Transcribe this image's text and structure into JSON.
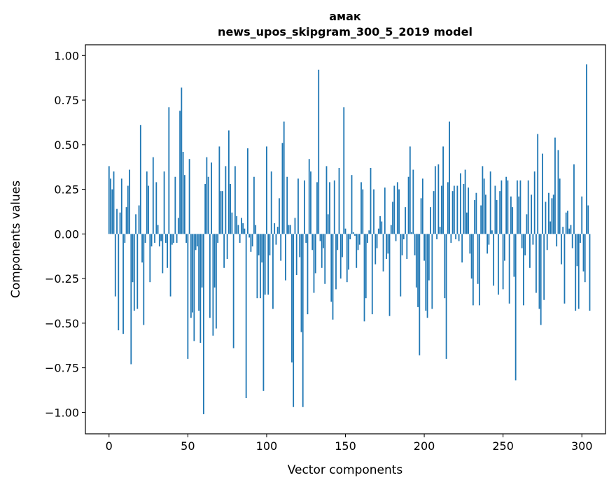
{
  "chart_data": {
    "type": "bar",
    "title_line1": "амак",
    "title_line2": "news_upos_skipgram_300_5_2019 model",
    "xlabel": "Vector components",
    "ylabel": "Components values",
    "xlim": [
      -15,
      315
    ],
    "ylim": [
      -1.12,
      1.06
    ],
    "xticks": [
      0,
      50,
      100,
      150,
      200,
      250,
      300
    ],
    "yticks": [
      -1.0,
      -0.75,
      -0.5,
      -0.25,
      0.0,
      0.25,
      0.5,
      0.75,
      1.0
    ],
    "ytick_labels": [
      "−1.00",
      "−0.75",
      "−0.50",
      "−0.25",
      "0.00",
      "0.25",
      "0.50",
      "0.75",
      "1.00"
    ],
    "bar_color": "#1f77b4",
    "grid": false,
    "values": [
      0.38,
      0.31,
      0.25,
      0.35,
      -0.35,
      0.14,
      -0.54,
      0.12,
      0.31,
      -0.56,
      -0.05,
      0.15,
      0.27,
      0.36,
      -0.73,
      -0.27,
      -0.43,
      0.11,
      -0.42,
      0.16,
      0.61,
      -0.16,
      -0.51,
      -0.05,
      0.35,
      0.27,
      -0.27,
      -0.07,
      0.43,
      -0.05,
      0.29,
      0.05,
      -0.07,
      -0.04,
      -0.22,
      0.35,
      -0.05,
      -0.19,
      0.71,
      -0.35,
      -0.06,
      -0.05,
      0.32,
      -0.05,
      0.09,
      0.69,
      0.82,
      0.46,
      0.33,
      -0.05,
      -0.7,
      0.42,
      -0.47,
      -0.44,
      -0.6,
      -0.09,
      -0.07,
      -0.43,
      -0.61,
      -0.3,
      -1.01,
      0.28,
      0.43,
      0.32,
      -0.47,
      0.4,
      -0.57,
      -0.3,
      -0.53,
      -0.05,
      0.49,
      0.24,
      0.24,
      -0.19,
      0.38,
      -0.14,
      0.58,
      0.28,
      0.12,
      -0.64,
      0.38,
      0.1,
      0.05,
      -0.05,
      0.09,
      0.06,
      0.03,
      -0.92,
      0.48,
      -0.02,
      -0.1,
      -0.07,
      0.32,
      0.05,
      -0.36,
      -0.12,
      -0.36,
      -0.16,
      -0.88,
      -0.34,
      0.49,
      -0.34,
      -0.12,
      0.35,
      -0.42,
      0.06,
      -0.06,
      0.04,
      0.2,
      -0.15,
      0.51,
      0.63,
      -0.26,
      0.32,
      0.05,
      0.05,
      -0.72,
      -0.97,
      0.09,
      -0.23,
      0.31,
      -0.13,
      -0.55,
      -0.97,
      0.3,
      -0.05,
      -0.45,
      0.42,
      0.35,
      -0.09,
      -0.33,
      -0.22,
      0.29,
      0.92,
      -0.04,
      -0.19,
      -0.08,
      -0.28,
      0.38,
      0.11,
      0.29,
      -0.38,
      -0.48,
      0.3,
      -0.31,
      -0.09,
      0.37,
      -0.25,
      -0.13,
      0.71,
      0.03,
      -0.27,
      -0.2,
      -0.03,
      0.33,
      0.01,
      -0.01,
      -0.19,
      -0.09,
      -0.06,
      0.29,
      0.25,
      -0.49,
      -0.36,
      -0.05,
      0.02,
      0.37,
      -0.45,
      0.25,
      -0.17,
      -0.08,
      0.03,
      0.1,
      0.07,
      -0.21,
      0.26,
      -0.14,
      -0.11,
      -0.46,
      0.05,
      0.18,
      0.27,
      -0.04,
      0.29,
      0.25,
      -0.35,
      -0.12,
      -0.03,
      0.15,
      -0.14,
      0.32,
      0.49,
      0.01,
      0.36,
      -0.12,
      -0.3,
      -0.41,
      -0.68,
      0.2,
      0.31,
      -0.15,
      -0.43,
      -0.47,
      -0.26,
      0.15,
      -0.42,
      0.24,
      0.38,
      -0.03,
      0.39,
      0.04,
      0.27,
      0.49,
      -0.36,
      -0.7,
      0.29,
      0.63,
      -0.05,
      0.24,
      0.27,
      -0.03,
      0.27,
      -0.04,
      0.34,
      -0.16,
      0.28,
      0.36,
      0.12,
      0.26,
      -0.11,
      -0.25,
      -0.4,
      0.19,
      0.23,
      -0.28,
      -0.4,
      0.16,
      0.38,
      0.31,
      0.22,
      -0.11,
      -0.06,
      0.35,
      0.02,
      -0.29,
      0.27,
      0.19,
      -0.34,
      0.24,
      0.3,
      -0.31,
      -0.15,
      0.32,
      0.3,
      -0.39,
      0.21,
      0.15,
      -0.24,
      -0.82,
      0.3,
      0.21,
      0.3,
      -0.08,
      -0.4,
      -0.12,
      0.11,
      0.3,
      -0.19,
      0.22,
      -0.06,
      0.35,
      -0.33,
      0.56,
      -0.42,
      -0.51,
      0.45,
      -0.37,
      0.18,
      -0.09,
      0.23,
      0.07,
      0.2,
      0.22,
      0.54,
      -0.07,
      0.47,
      0.31,
      -0.17,
      0.04,
      -0.39,
      0.12,
      0.13,
      0.03,
      0.05,
      -0.08,
      0.39,
      -0.43,
      -0.18,
      -0.42,
      -0.05,
      0.21,
      -0.21,
      -0.27,
      0.95,
      0.16,
      -0.43
    ]
  }
}
